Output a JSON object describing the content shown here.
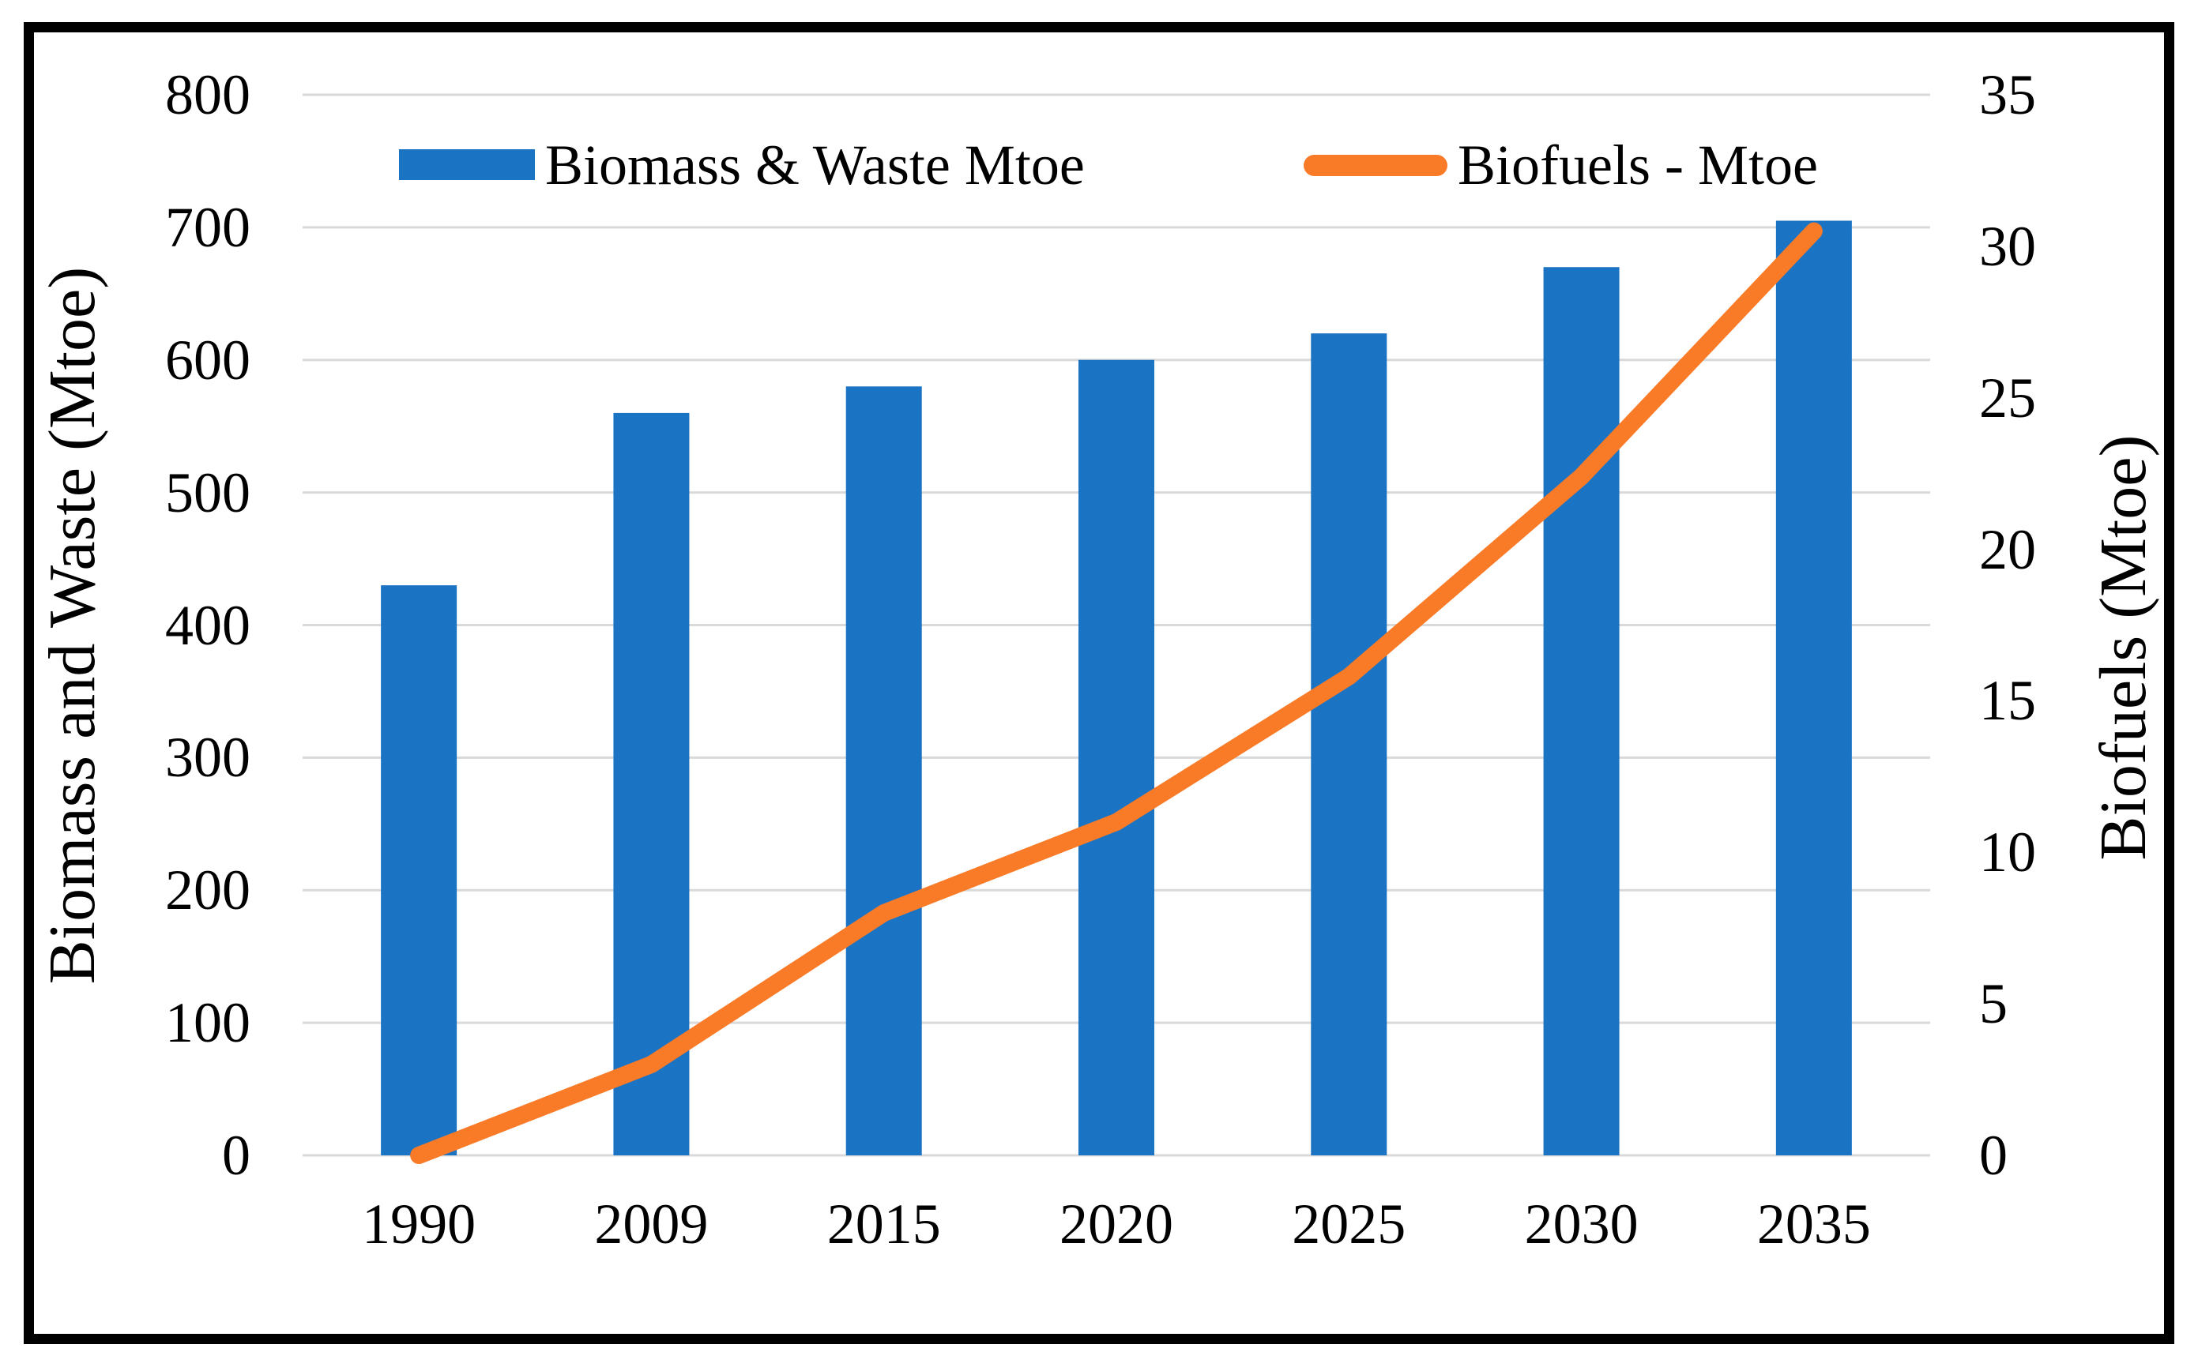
{
  "figure": {
    "background": "#FFFFFF",
    "border_color": "#000000"
  },
  "legend": {
    "items": [
      {
        "label": "Biomass  & Waste Mtoe",
        "marker": "bar-swatch",
        "color": "#1B73C4"
      },
      {
        "label": "Biofuels - Mtoe",
        "marker": "line-swatch",
        "color": "#F97B28"
      }
    ]
  },
  "chart_data": {
    "type": "combo",
    "categories": [
      "1990",
      "2009",
      "2015",
      "2020",
      "2025",
      "2030",
      "2035"
    ],
    "series": [
      {
        "name": "Biomass  & Waste Mtoe",
        "type": "bar",
        "axis": "left",
        "color": "#1B73C4",
        "values": [
          430,
          560,
          580,
          600,
          620,
          670,
          705
        ]
      },
      {
        "name": "Biofuels - Mtoe",
        "type": "line",
        "axis": "right",
        "color": "#F97B28",
        "values": [
          0,
          3,
          8,
          11,
          15.8,
          22.4,
          30.5
        ]
      }
    ],
    "left_axis": {
      "title": "Biomass and Waste (Mtoe)",
      "min": 0,
      "max": 800,
      "step": 100,
      "ticks": [
        "800",
        "700",
        "600",
        "500",
        "400",
        "300",
        "200",
        "100",
        "0"
      ]
    },
    "right_axis": {
      "title": "Biofuels (Mtoe)",
      "min": 0,
      "max": 35,
      "step": 5,
      "ticks": [
        "35",
        "30",
        "25",
        "20",
        "15",
        "10",
        "5",
        "0"
      ]
    },
    "grid": {
      "color": "#D9D9D9",
      "shown": true
    },
    "legend_position": "top"
  }
}
